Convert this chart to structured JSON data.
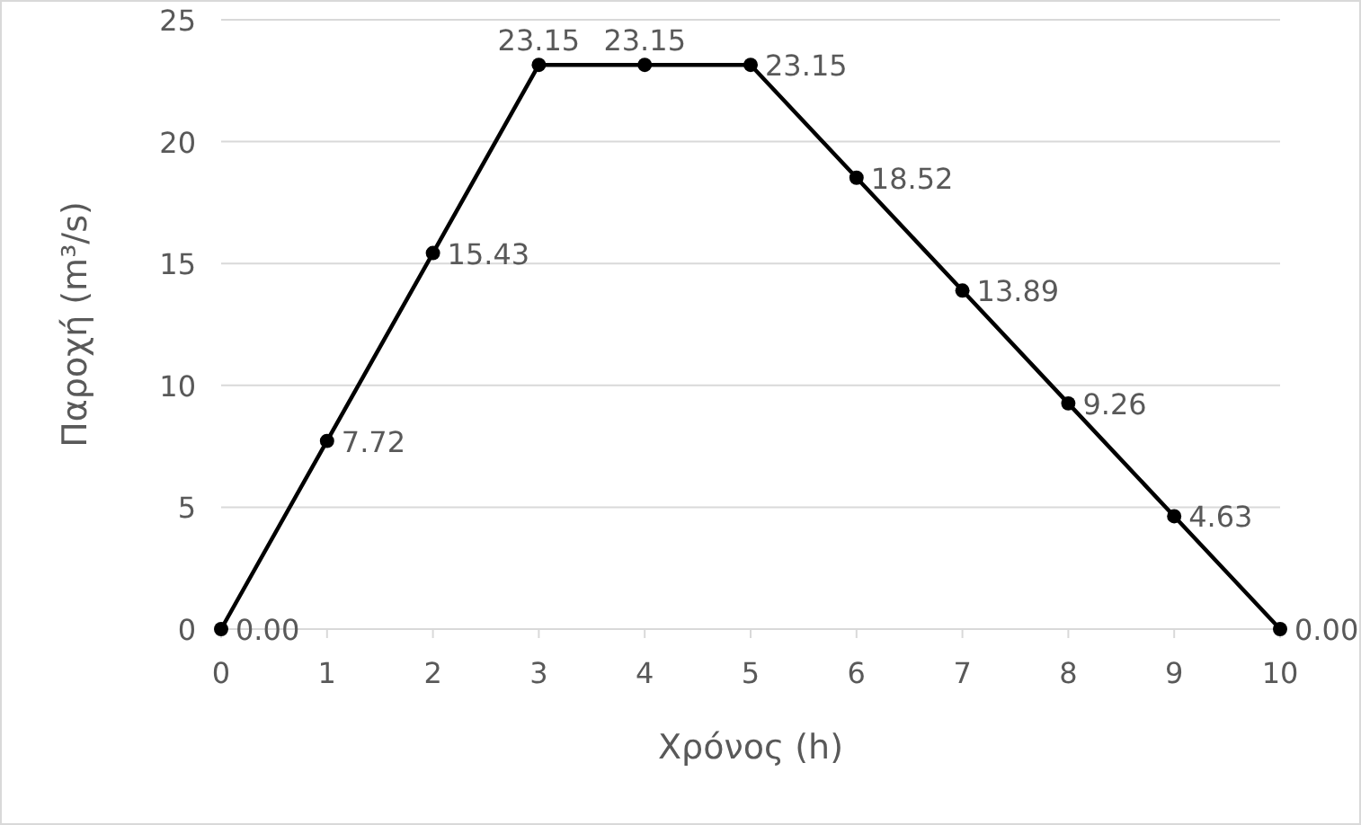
{
  "chart_data": {
    "type": "line",
    "xlabel": "Χρόνος (h)",
    "ylabel": "Παροχή (m³/s)",
    "x": [
      0,
      1,
      2,
      3,
      4,
      5,
      6,
      7,
      8,
      9,
      10
    ],
    "series": [
      {
        "color": "#000000",
        "values": [
          0,
          7.72,
          15.43,
          23.15,
          23.15,
          23.15,
          18.52,
          13.89,
          9.26,
          4.63,
          0
        ],
        "value_labels": [
          "0.00",
          "7.72",
          "15.43",
          "23.15",
          "23.15",
          "23.15",
          "18.52",
          "13.89",
          "9.26",
          "4.63",
          "0.00"
        ]
      }
    ],
    "xlim": [
      0,
      10
    ],
    "xticks": [
      0,
      1,
      2,
      3,
      4,
      5,
      6,
      7,
      8,
      9,
      10
    ],
    "ylim": [
      0,
      25
    ],
    "yticks": [
      0,
      5,
      10,
      15,
      20,
      25
    ],
    "grid": "y",
    "marker": "circle",
    "line_style": "solid"
  }
}
